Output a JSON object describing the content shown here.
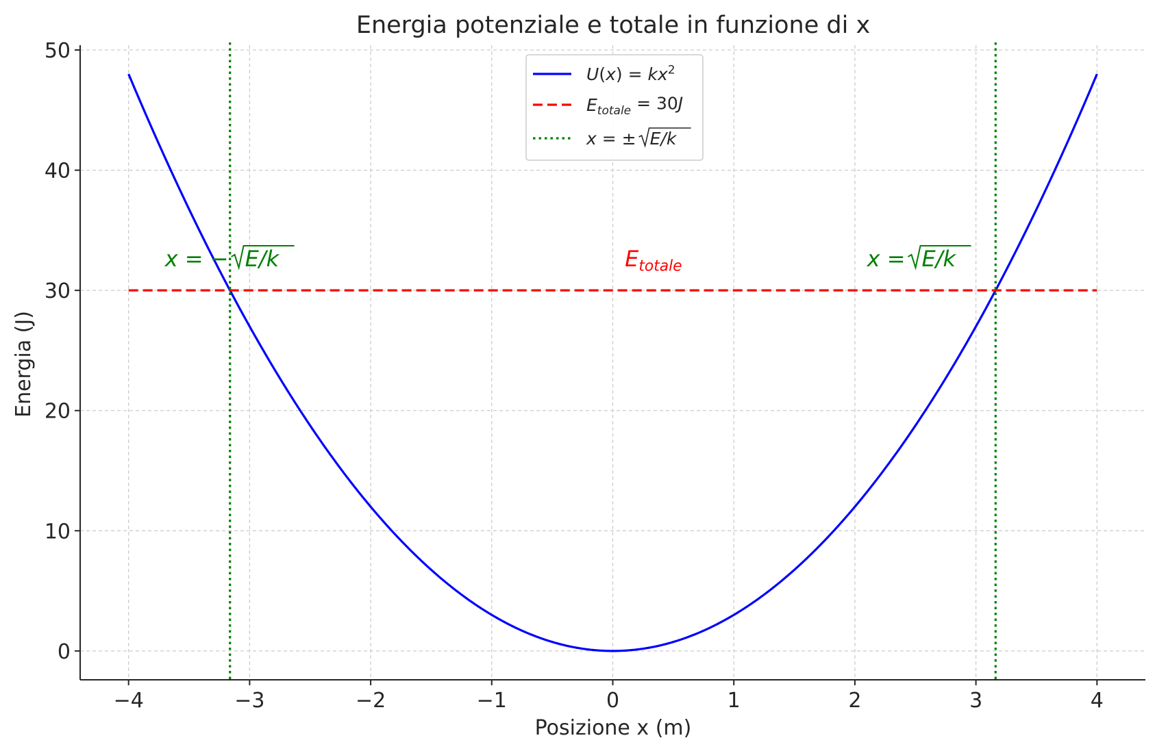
{
  "chart_data": {
    "type": "line",
    "title": "Energia potenziale e totale in funzione di x",
    "xlabel": "Posizione x (m)",
    "ylabel": "Energia (J)",
    "xlim": [
      -4.4,
      4.4
    ],
    "ylim": [
      -2.4,
      50.4
    ],
    "xticks": [
      -4,
      -3,
      -2,
      -1,
      0,
      1,
      2,
      3,
      4
    ],
    "xtick_labels": [
      "−4",
      "−3",
      "−2",
      "−1",
      "0",
      "1",
      "2",
      "3",
      "4"
    ],
    "yticks": [
      0,
      10,
      20,
      30,
      40,
      50
    ],
    "ytick_labels": [
      "0",
      "10",
      "20",
      "30",
      "40",
      "50"
    ],
    "grid": true,
    "legend_position": "top-center",
    "k": 3,
    "E_totale": 30,
    "series": [
      {
        "name": "U(x) = kx²",
        "style": "solid",
        "color": "#0000ff",
        "function": "3*x^2",
        "x_range": [
          -4,
          4
        ],
        "x": [
          -4,
          -3.5,
          -3,
          -2.5,
          -2,
          -1.5,
          -1,
          -0.5,
          0,
          0.5,
          1,
          1.5,
          2,
          2.5,
          3,
          3.5,
          4
        ],
        "y": [
          48,
          36.75,
          27,
          18.75,
          12,
          6.75,
          3,
          0.75,
          0,
          0.75,
          3,
          6.75,
          12,
          18.75,
          27,
          36.75,
          48
        ]
      },
      {
        "name": "E_totale = 30J",
        "style": "dashed",
        "color": "#ff0000",
        "x": [
          -4,
          4
        ],
        "y": [
          30,
          30
        ]
      },
      {
        "name": "x = ±√(E/k)",
        "style": "dotted",
        "color": "#008000",
        "vertical_lines_x": [
          -3.1623,
          3.1623
        ]
      }
    ],
    "legend": [
      {
        "label": "U(x) = kx²",
        "style": "solid",
        "color": "#0000ff"
      },
      {
        "label": "E_totale = 30J",
        "style": "dashed",
        "color": "#ff0000"
      },
      {
        "label": "x = ±√E/k",
        "style": "dotted",
        "color": "#008000"
      }
    ],
    "annotations": [
      {
        "text": "x = −√E/k",
        "x": -3.7,
        "y": 32,
        "color": "#008000"
      },
      {
        "text": "E_totale",
        "x": 0.1,
        "y": 32,
        "color": "#ff0000"
      },
      {
        "text": "x = √E/k",
        "x": 2.1,
        "y": 32,
        "color": "#008000"
      }
    ]
  }
}
